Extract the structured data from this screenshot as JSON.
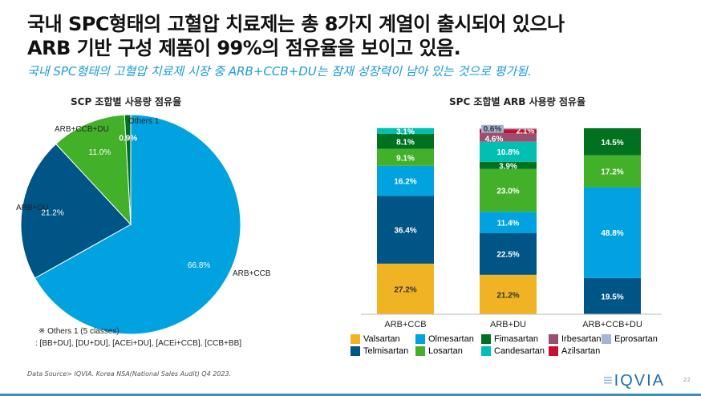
{
  "title": {
    "line1": "국내 SPC형태의 고혈압 치료제는 총 8가지 계열이 출시되어 있으나",
    "line2": "ARB 기반 구성 제품이 99%의 점유율을 보이고 있음.",
    "subtitle": "국내 SPC형태의 고혈압 치료제 시장 중 ARB+CCB+DU는 잠재 성장력이 남아 있는 것으로 평가됨."
  },
  "chart_data": [
    {
      "type": "pie",
      "title": "SCP 조합별 사용량 점유율",
      "slices": [
        {
          "name": "ARB+CCB",
          "value": 66.8,
          "label": "66.8%",
          "color": "#00A3E0"
        },
        {
          "name": "ARB+DU",
          "value": 21.2,
          "label": "21.2%",
          "color": "#005587"
        },
        {
          "name": "ARB+CCB+DU",
          "value": 11.0,
          "label": "11.0%",
          "color": "#43B02A"
        },
        {
          "name": "Others 1",
          "value": 0.9,
          "label": "0.9%",
          "color": "#00711F"
        }
      ]
    },
    {
      "type": "bar",
      "stacked": true,
      "title": "SPC 조합별 ARB 사용량 점유율",
      "ylim": [
        0,
        100
      ],
      "categories": [
        "ARB+CCB",
        "ARB+DU",
        "ARB+CCB+DU"
      ],
      "series": [
        {
          "name": "Valsartan",
          "color": "#F0B323",
          "values": [
            27.2,
            21.2,
            0
          ]
        },
        {
          "name": "Telmisartan",
          "color": "#005587",
          "values": [
            36.4,
            22.5,
            19.5
          ]
        },
        {
          "name": "Olmesartan",
          "color": "#00A3E0",
          "values": [
            16.2,
            11.4,
            48.8
          ]
        },
        {
          "name": "Losartan",
          "color": "#43B02A",
          "values": [
            9.1,
            23.0,
            17.2
          ]
        },
        {
          "name": "Fimasartan",
          "color": "#00711F",
          "values": [
            8.1,
            3.9,
            14.5
          ]
        },
        {
          "name": "Candesartan",
          "color": "#00BFB3",
          "values": [
            3.1,
            10.8,
            0
          ]
        },
        {
          "name": "Irbesartan",
          "color": "#9B4F70",
          "values": [
            0,
            4.6,
            0
          ]
        },
        {
          "name": "Azilsartan",
          "color": "#C8102E",
          "values": [
            0,
            2.1,
            0
          ]
        },
        {
          "name": "Eprosartan",
          "color": "#A3B4D4",
          "values": [
            0,
            0.6,
            0
          ]
        }
      ],
      "legend_order": [
        "Valsartan",
        "Olmesartan",
        "Fimasartan",
        "Irbesartan",
        "Eprosartan",
        "Telmisartan",
        "Losartan",
        "Candesartan",
        "Azilsartan"
      ]
    }
  ],
  "note": {
    "line1": "※ Others 1 (5 classes)",
    "line2": ": [BB+DU], [DU+DU], [ACEi+DU], [ACEi+CCB], [CCB+BB]"
  },
  "source": "Data Source> IQVIA. Korea NSA(National Sales Audit) Q4 2023.",
  "logo": "IQVIA",
  "page": "22"
}
